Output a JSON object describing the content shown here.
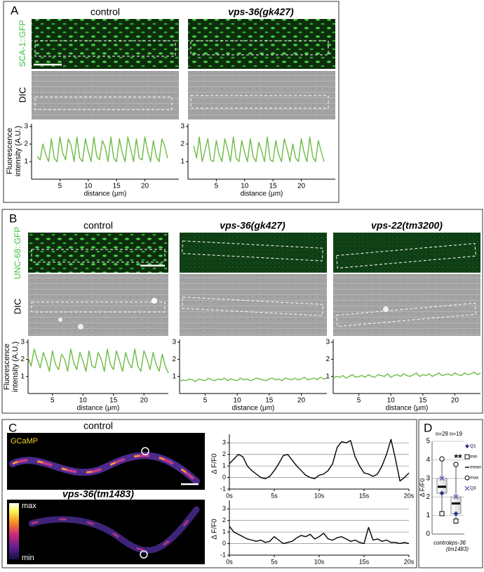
{
  "panels": {
    "A": {
      "label": "A",
      "titles": [
        "control",
        "vps-36(gk427)"
      ],
      "row_labels": [
        "SCA-1::GFP",
        "DIC"
      ]
    },
    "B": {
      "label": "B",
      "titles": [
        "control",
        "vps-36(gk427)",
        "vps-22(tm3200)"
      ],
      "row_labels": [
        "UNC-68::GFP",
        "DIC"
      ]
    },
    "C": {
      "label": "C",
      "titles": [
        "control",
        "vps-36(tm1483)"
      ],
      "image_label": "GCaMP",
      "colorbar_labels": [
        "max",
        "min"
      ]
    },
    "D": {
      "label": "D"
    }
  },
  "chart_data": [
    {
      "type": "line",
      "ylabel": "Fluorescence intensity (A.U.)",
      "xlabel": "distance (μm)",
      "x": [
        1,
        1.5,
        2,
        2.5,
        3,
        3.5,
        4,
        4.5,
        5,
        5.5,
        6,
        6.5,
        7,
        7.5,
        8,
        8.5,
        9,
        9.5,
        10,
        10.5,
        11,
        11.5,
        12,
        12.5,
        13,
        13.5,
        14,
        14.5,
        15,
        15.5,
        16,
        16.5,
        17,
        17.5,
        18,
        18.5,
        19,
        19.5,
        20,
        20.5,
        21,
        21.5,
        22,
        22.5,
        23,
        23.5,
        24
      ],
      "series": [
        {
          "color": "#6dbb45",
          "values": [
            1.3,
            1.1,
            2.0,
            1.4,
            1.0,
            2.3,
            1.2,
            1.0,
            2.4,
            1.5,
            1.1,
            2.3,
            1.9,
            1.0,
            2.4,
            1.2,
            1.0,
            2.3,
            1.6,
            1.0,
            2.4,
            1.3,
            1.1,
            2.2,
            1.8,
            1.0,
            2.4,
            1.2,
            1.0,
            2.3,
            1.5,
            1.0,
            2.4,
            1.7,
            1.0,
            2.3,
            1.2,
            1.1,
            2.4,
            1.6,
            1.0,
            2.2,
            1.3,
            1.0,
            2.3,
            1.9,
            1.2
          ]
        }
      ],
      "xlim": [
        0,
        26
      ],
      "ylim": [
        0,
        3
      ],
      "xticks": [
        5,
        10,
        15,
        20
      ],
      "yticks": [
        1,
        2,
        3
      ]
    },
    {
      "type": "line",
      "xlabel": "distance (μm)",
      "x": [
        1,
        1.5,
        2,
        2.5,
        3,
        3.5,
        4,
        4.5,
        5,
        5.5,
        6,
        6.5,
        7,
        7.5,
        8,
        8.5,
        9,
        9.5,
        10,
        10.5,
        11,
        11.5,
        12,
        12.5,
        13,
        13.5,
        14,
        14.5,
        15,
        15.5,
        16,
        16.5,
        17,
        17.5,
        18,
        18.5,
        19,
        19.5,
        20,
        20.5,
        21,
        21.5,
        22,
        22.5,
        23,
        23.5,
        24
      ],
      "series": [
        {
          "color": "#6dbb45",
          "values": [
            1.9,
            1.2,
            2.4,
            1.0,
            1.6,
            2.3,
            1.1,
            1.0,
            2.2,
            1.4,
            1.0,
            2.3,
            1.7,
            1.0,
            2.4,
            1.2,
            1.0,
            2.2,
            1.5,
            1.0,
            2.3,
            1.3,
            1.0,
            2.1,
            1.6,
            1.0,
            2.4,
            1.1,
            1.0,
            2.2,
            1.4,
            1.0,
            2.3,
            1.7,
            1.0,
            2.0,
            1.2,
            1.0,
            2.3,
            1.5,
            1.0,
            2.4,
            1.3,
            1.0,
            2.2,
            1.6,
            1.0
          ]
        }
      ],
      "xlim": [
        0,
        26
      ],
      "ylim": [
        0,
        3
      ],
      "xticks": [
        5,
        10,
        15,
        20
      ],
      "yticks": [
        1,
        2,
        3
      ]
    },
    {
      "type": "line",
      "ylabel": "Fluorescence intensity (A.U.)",
      "xlabel": "distance (μm)",
      "x": [
        1,
        1.5,
        2,
        2.5,
        3,
        3.5,
        4,
        4.5,
        5,
        5.5,
        6,
        6.5,
        7,
        7.5,
        8,
        8.5,
        9,
        9.5,
        10,
        10.5,
        11,
        11.5,
        12,
        12.5,
        13,
        13.5,
        14,
        14.5,
        15,
        15.5,
        16,
        16.5,
        17,
        17.5,
        18,
        18.5,
        19,
        19.5,
        20,
        20.5,
        21,
        21.5,
        22,
        22.5,
        23,
        23.5,
        24
      ],
      "series": [
        {
          "color": "#6dbb45",
          "values": [
            2.1,
            1.6,
            2.6,
            2.0,
            1.5,
            2.4,
            1.9,
            1.3,
            2.5,
            1.7,
            1.4,
            2.3,
            2.0,
            1.3,
            2.6,
            1.8,
            1.4,
            2.4,
            1.9,
            1.3,
            2.5,
            1.6,
            1.5,
            2.4,
            2.0,
            1.3,
            2.6,
            1.7,
            1.4,
            2.5,
            1.9,
            1.3,
            2.4,
            1.8,
            1.5,
            2.6,
            1.6,
            1.3,
            2.5,
            2.0,
            1.4,
            2.4,
            1.7,
            1.3,
            2.3,
            1.6,
            1.2
          ]
        }
      ],
      "xlim": [
        1,
        24
      ],
      "ylim": [
        0,
        3
      ],
      "xticks": [
        5,
        10,
        15,
        20
      ],
      "yticks": [
        1,
        2,
        3
      ]
    },
    {
      "type": "line",
      "xlabel": "distance (μm)",
      "x": [
        1,
        1.5,
        2,
        2.5,
        3,
        3.5,
        4,
        4.5,
        5,
        5.5,
        6,
        6.5,
        7,
        7.5,
        8,
        8.5,
        9,
        9.5,
        10,
        10.5,
        11,
        11.5,
        12,
        12.5,
        13,
        13.5,
        14,
        14.5,
        15,
        15.5,
        16,
        16.5,
        17,
        17.5,
        18,
        18.5,
        19,
        19.5,
        20,
        20.5,
        21,
        21.5,
        22,
        22.5,
        23,
        23.5,
        24
      ],
      "series": [
        {
          "color": "#6dbb45",
          "values": [
            0.7,
            0.8,
            0.75,
            0.85,
            0.8,
            0.7,
            0.85,
            0.8,
            0.75,
            0.9,
            0.8,
            0.75,
            0.85,
            0.8,
            0.9,
            0.75,
            0.85,
            0.8,
            0.75,
            0.9,
            0.8,
            0.85,
            0.75,
            0.8,
            0.9,
            0.85,
            0.8,
            0.75,
            0.85,
            0.9,
            0.8,
            0.85,
            0.75,
            0.9,
            0.85,
            0.8,
            0.9,
            0.8,
            0.85,
            0.95,
            0.8,
            0.85,
            0.9,
            0.8,
            0.95,
            0.85,
            0.9
          ]
        }
      ],
      "xlim": [
        1,
        24
      ],
      "ylim": [
        0,
        3
      ],
      "xticks": [
        5,
        10,
        15,
        20
      ],
      "yticks": [
        1,
        2,
        3
      ]
    },
    {
      "type": "line",
      "xlabel": "distance (μm)",
      "x": [
        1,
        1.5,
        2,
        2.5,
        3,
        3.5,
        4,
        4.5,
        5,
        5.5,
        6,
        6.5,
        7,
        7.5,
        8,
        8.5,
        9,
        9.5,
        10,
        10.5,
        11,
        11.5,
        12,
        12.5,
        13,
        13.5,
        14,
        14.5,
        15,
        15.5,
        16,
        16.5,
        17,
        17.5,
        18,
        18.5,
        19,
        19.5,
        20,
        20.5,
        21,
        21.5,
        22,
        22.5,
        23,
        23.5,
        24
      ],
      "series": [
        {
          "color": "#6dbb45",
          "values": [
            0.9,
            1.0,
            0.95,
            1.05,
            0.9,
            1.0,
            1.1,
            0.95,
            1.0,
            1.05,
            0.95,
            1.1,
            1.0,
            0.95,
            1.1,
            1.05,
            1.0,
            1.15,
            0.95,
            1.05,
            1.1,
            1.0,
            1.15,
            1.05,
            1.0,
            1.1,
            1.2,
            1.0,
            1.1,
            1.05,
            1.15,
            1.0,
            1.1,
            1.2,
            1.05,
            1.1,
            1.15,
            1.05,
            1.2,
            1.1,
            1.05,
            1.2,
            1.1,
            1.15,
            1.25,
            1.1,
            1.2
          ]
        }
      ],
      "xlim": [
        1,
        24
      ],
      "ylim": [
        0,
        3
      ],
      "xticks": [
        5,
        10,
        15,
        20
      ],
      "yticks": [
        1,
        2,
        3
      ]
    },
    {
      "type": "line",
      "ylabel": "Δ F/F0",
      "x": [
        0,
        0.5,
        1,
        1.5,
        2,
        2.5,
        3,
        3.5,
        4,
        4.5,
        5,
        5.5,
        6,
        6.5,
        7,
        7.5,
        8,
        8.5,
        9,
        9.5,
        10,
        10.5,
        11,
        11.5,
        12,
        12.5,
        13,
        13.5,
        14,
        14.5,
        15,
        15.5,
        16,
        16.5,
        17,
        17.5,
        18,
        18.5,
        19,
        19.5,
        20
      ],
      "series": [
        {
          "color": "#000000",
          "values": [
            1.2,
            1.6,
            2.0,
            1.8,
            1.0,
            0.6,
            0.3,
            0.0,
            -0.1,
            0.1,
            0.6,
            1.2,
            1.9,
            2.0,
            1.5,
            1.0,
            0.6,
            0.2,
            0.0,
            -0.1,
            0.2,
            0.3,
            0.6,
            1.2,
            2.6,
            3.1,
            3.0,
            3.2,
            1.8,
            1.0,
            0.4,
            0.3,
            0.1,
            0.3,
            1.0,
            2.0,
            3.3,
            1.6,
            -0.3,
            0.0,
            0.4
          ]
        }
      ],
      "xlim": [
        0,
        20
      ],
      "ylim": [
        -1,
        3.5
      ],
      "grid": true,
      "xticks": [
        {
          "value": 0,
          "label": "0s"
        },
        {
          "value": 5,
          "label": "5s"
        },
        {
          "value": 10,
          "label": "10s"
        },
        {
          "value": 15,
          "label": "15s"
        },
        {
          "value": 20,
          "label": "20s"
        }
      ],
      "yticks": [
        -1,
        0,
        1,
        2,
        3
      ]
    },
    {
      "type": "line",
      "ylabel": "Δ F/F0",
      "x": [
        0,
        0.5,
        1,
        1.5,
        2,
        2.5,
        3,
        3.5,
        4,
        4.5,
        5,
        5.5,
        6,
        6.5,
        7,
        7.5,
        8,
        8.5,
        9,
        9.5,
        10,
        10.5,
        11,
        11.5,
        12,
        12.5,
        13,
        13.5,
        14,
        14.5,
        15,
        15.5,
        16,
        16.5,
        17,
        17.5,
        18,
        18.5,
        19,
        19.5,
        20
      ],
      "series": [
        {
          "color": "#000000",
          "values": [
            1.5,
            1.0,
            0.8,
            0.6,
            0.4,
            0.3,
            0.2,
            0.3,
            0.1,
            0.2,
            0.6,
            0.3,
            0.0,
            0.1,
            0.2,
            0.5,
            0.7,
            0.6,
            0.8,
            0.4,
            0.6,
            0.9,
            0.4,
            0.3,
            0.5,
            0.6,
            0.4,
            0.2,
            0.3,
            0.1,
            0.0,
            1.4,
            0.3,
            0.4,
            0.2,
            0.3,
            0.1,
            0.1,
            0.0,
            0.1,
            0.0
          ]
        }
      ],
      "xlim": [
        0,
        20
      ],
      "ylim": [
        -1,
        3.5
      ],
      "grid": true,
      "xticks": [
        {
          "value": 0,
          "label": "0s"
        },
        {
          "value": 5,
          "label": "5s"
        },
        {
          "value": 10,
          "label": "10s"
        },
        {
          "value": 15,
          "label": "15s"
        },
        {
          "value": 20,
          "label": "20s"
        }
      ],
      "yticks": [
        -1,
        0,
        1,
        2,
        3
      ]
    },
    {
      "type": "box",
      "ylabel": "Δ F/F0",
      "categories": [
        "control",
        "vps-36 (tm1483)"
      ],
      "n_labels": [
        "n=29",
        "n=19"
      ],
      "annotation": "**",
      "q1": [
        2.2,
        1.1
      ],
      "min": [
        1.1,
        0.7
      ],
      "mean": [
        2.55,
        1.65
      ],
      "max": [
        4.05,
        3.75
      ],
      "q3": [
        3.0,
        2.0
      ],
      "q1_color": "#2b3590",
      "q3_color": "#7060c0",
      "legend": [
        "Q1",
        "min",
        "mean",
        "max",
        "Q3"
      ],
      "ylim": [
        0,
        5
      ],
      "yticks": [
        0,
        1,
        2,
        3,
        4,
        5
      ],
      "grid": true
    }
  ]
}
